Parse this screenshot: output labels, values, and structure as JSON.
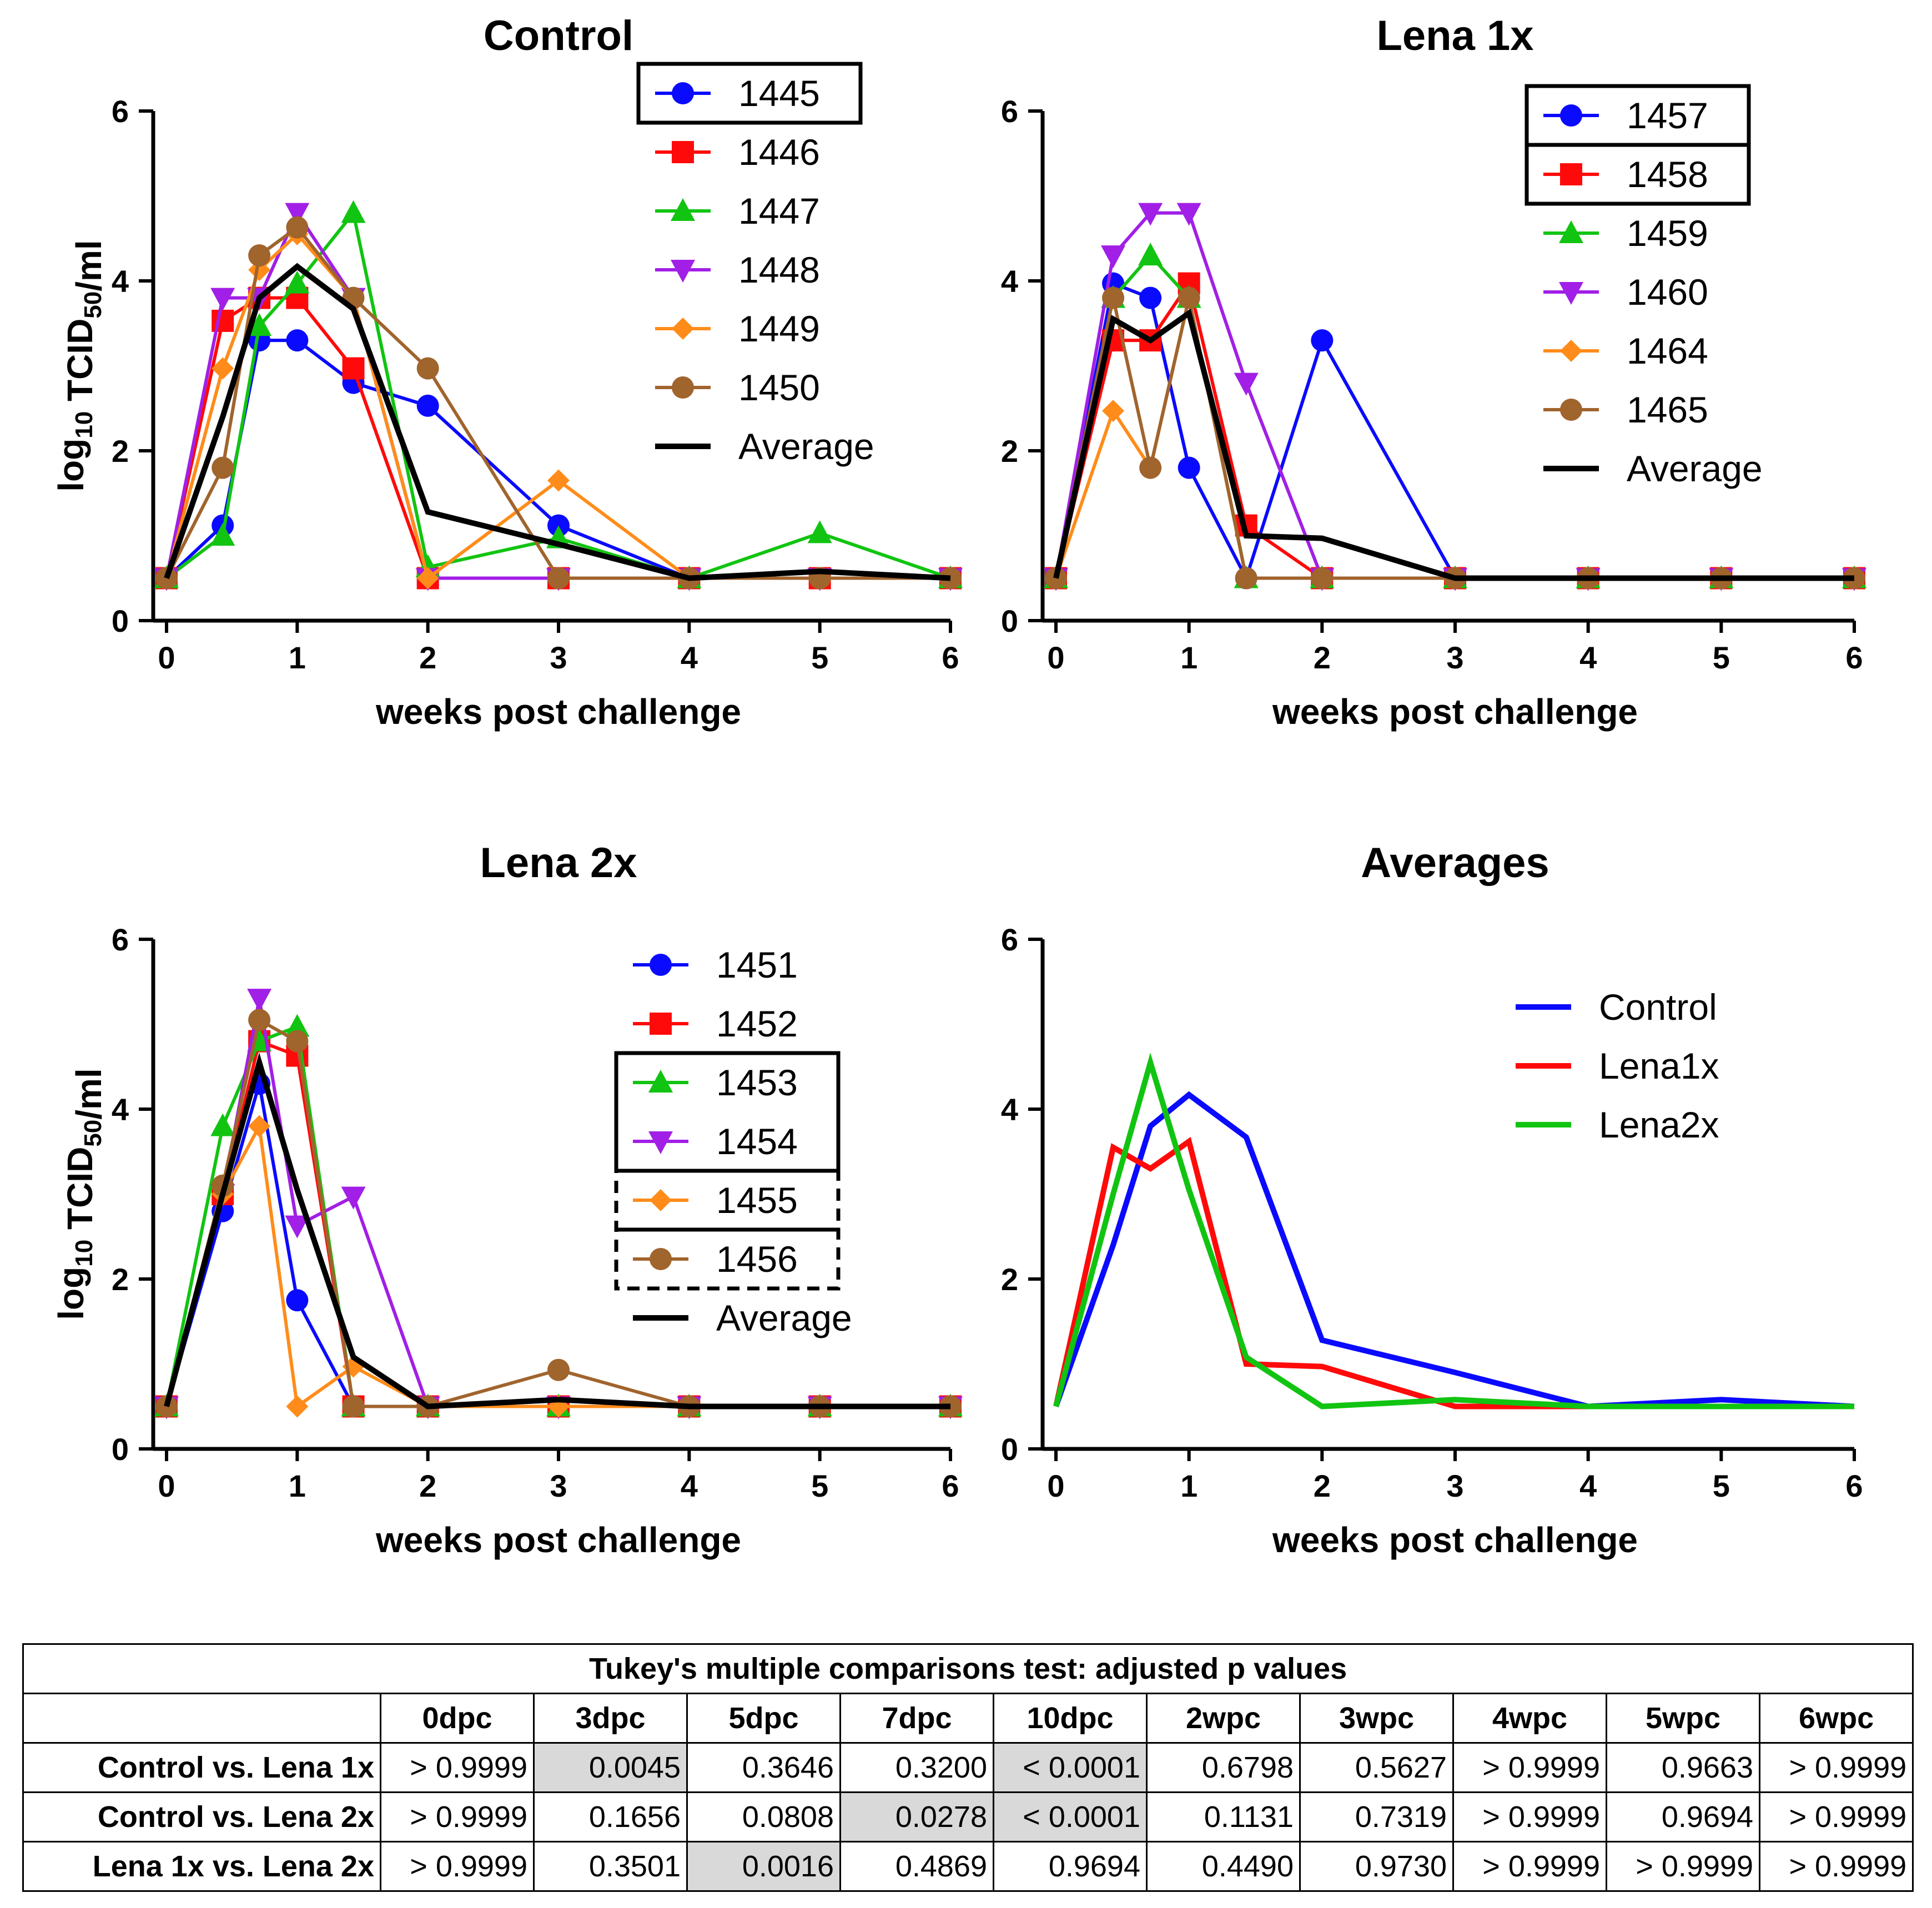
{
  "colors": {
    "blue": "#0a0aff",
    "red": "#ff0a0a",
    "green": "#11c411",
    "purple": "#a11fe6",
    "orange": "#ff8c1a",
    "brown": "#a0642d",
    "black": "#000000"
  },
  "chart_data": [
    {
      "type": "line",
      "title": "Control",
      "xlabel": "weeks post challenge",
      "ylabel_main": "log",
      "ylabel_sub": "10",
      "ylabel_mid": " TCID",
      "ylabel_sub2": "50",
      "ylabel_end": "/ml",
      "xlim": [
        0,
        6
      ],
      "ylim": [
        0,
        6
      ],
      "xticks": [
        "0",
        "1",
        "2",
        "3",
        "4",
        "5",
        "6"
      ],
      "yticks": [
        "0",
        "2",
        "4",
        "6"
      ],
      "series": [
        {
          "name": "1445",
          "color": "#0a0aff",
          "marker": "circle",
          "x": [
            0,
            0.43,
            0.71,
            1,
            1.43,
            2,
            3,
            4,
            5,
            6
          ],
          "y": [
            0.5,
            1.12,
            3.3,
            3.3,
            2.8,
            2.53,
            1.12,
            0.5,
            0.5,
            0.5
          ]
        },
        {
          "name": "1446",
          "color": "#ff0a0a",
          "marker": "square",
          "x": [
            0,
            0.43,
            0.71,
            1,
            1.43,
            2,
            3,
            4,
            5,
            6
          ],
          "y": [
            0.5,
            3.53,
            3.8,
            3.8,
            2.97,
            0.5,
            0.5,
            0.5,
            0.5,
            0.5
          ]
        },
        {
          "name": "1447",
          "color": "#11c411",
          "marker": "triangle-up",
          "x": [
            0,
            0.43,
            0.71,
            1,
            1.43,
            2,
            3,
            4,
            5,
            6
          ],
          "y": [
            0.5,
            1.0,
            3.47,
            3.97,
            4.8,
            0.63,
            0.97,
            0.5,
            1.03,
            0.5
          ]
        },
        {
          "name": "1448",
          "color": "#a11fe6",
          "marker": "triangle-down",
          "x": [
            0,
            0.43,
            0.71,
            1,
            1.43,
            2,
            3,
            4,
            5,
            6
          ],
          "y": [
            0.5,
            3.8,
            3.8,
            4.8,
            3.8,
            0.5,
            0.5,
            0.5,
            0.5,
            0.5
          ]
        },
        {
          "name": "1449",
          "color": "#ff8c1a",
          "marker": "diamond",
          "x": [
            0,
            0.43,
            0.71,
            1,
            1.43,
            2,
            3,
            4,
            5,
            6
          ],
          "y": [
            0.5,
            2.97,
            4.13,
            4.55,
            3.8,
            0.5,
            1.65,
            0.5,
            0.5,
            0.5
          ]
        },
        {
          "name": "1450",
          "color": "#a0642d",
          "marker": "circle",
          "x": [
            0,
            0.43,
            0.71,
            1,
            1.43,
            2,
            3,
            4,
            5,
            6
          ],
          "y": [
            0.5,
            1.8,
            4.3,
            4.63,
            3.8,
            2.97,
            0.5,
            0.5,
            0.5,
            0.5
          ]
        },
        {
          "name": "Average",
          "color": "#000000",
          "marker": "none",
          "x": [
            0,
            0.43,
            0.71,
            1,
            1.43,
            2,
            3,
            4,
            5,
            6
          ],
          "y": [
            0.5,
            2.4,
            3.8,
            4.17,
            3.67,
            1.28,
            0.9,
            0.5,
            0.58,
            0.5
          ]
        }
      ],
      "legend_boxes": [
        {
          "from": 0,
          "to": 0,
          "style": "solid"
        }
      ]
    },
    {
      "type": "line",
      "title": "Lena 1x",
      "xlabel": "weeks post challenge",
      "xlim": [
        0,
        6
      ],
      "ylim": [
        0,
        6
      ],
      "xticks": [
        "0",
        "1",
        "2",
        "3",
        "4",
        "5",
        "6"
      ],
      "yticks": [
        "0",
        "2",
        "4",
        "6"
      ],
      "series": [
        {
          "name": "1457",
          "color": "#0a0aff",
          "marker": "circle",
          "x": [
            0,
            0.43,
            0.71,
            1,
            1.43,
            2,
            3,
            4,
            5,
            6
          ],
          "y": [
            0.5,
            3.97,
            3.8,
            1.8,
            0.5,
            3.3,
            0.5,
            0.5,
            0.5,
            0.5
          ]
        },
        {
          "name": "1458",
          "color": "#ff0a0a",
          "marker": "square",
          "x": [
            0,
            0.43,
            0.71,
            1,
            1.43,
            2,
            3,
            4,
            5,
            6
          ],
          "y": [
            0.5,
            3.3,
            3.3,
            3.97,
            1.12,
            0.5,
            0.5,
            0.5,
            0.5,
            0.5
          ]
        },
        {
          "name": "1459",
          "color": "#11c411",
          "marker": "triangle-up",
          "x": [
            0,
            0.43,
            0.71,
            1,
            1.43,
            2,
            3,
            4,
            5,
            6
          ],
          "y": [
            0.5,
            3.8,
            4.3,
            3.8,
            0.5,
            0.5,
            0.5,
            0.5,
            0.5,
            0.5
          ]
        },
        {
          "name": "1460",
          "color": "#a11fe6",
          "marker": "triangle-down",
          "x": [
            0,
            0.43,
            0.71,
            1,
            1.43,
            2,
            3,
            4,
            5,
            6
          ],
          "y": [
            0.5,
            4.3,
            4.8,
            4.8,
            2.8,
            0.5,
            0.5,
            0.5,
            0.5,
            0.5
          ]
        },
        {
          "name": "1464",
          "color": "#ff8c1a",
          "marker": "diamond",
          "x": [
            0,
            0.43,
            0.71,
            1,
            1.43,
            2,
            3,
            4,
            5,
            6
          ],
          "y": [
            0.5,
            2.47,
            1.8,
            3.8,
            0.5,
            0.5,
            0.5,
            0.5,
            0.5,
            0.5
          ]
        },
        {
          "name": "1465",
          "color": "#a0642d",
          "marker": "circle",
          "x": [
            0,
            0.43,
            0.71,
            1,
            1.43,
            2,
            3,
            4,
            5,
            6
          ],
          "y": [
            0.5,
            3.8,
            1.8,
            3.8,
            0.5,
            0.5,
            0.5,
            0.5,
            0.5,
            0.5
          ]
        },
        {
          "name": "Average",
          "color": "#000000",
          "marker": "none",
          "x": [
            0,
            0.43,
            0.71,
            1,
            1.43,
            2,
            3,
            4,
            5,
            6
          ],
          "y": [
            0.5,
            3.55,
            3.3,
            3.62,
            1.0,
            0.97,
            0.5,
            0.5,
            0.5,
            0.5
          ]
        }
      ],
      "legend_boxes": [
        {
          "from": 0,
          "to": 0,
          "style": "solid"
        },
        {
          "from": 1,
          "to": 1,
          "style": "solid"
        }
      ]
    },
    {
      "type": "line",
      "title": "Lena 2x",
      "xlabel": "weeks post challenge",
      "ylabel_main": "log",
      "ylabel_sub": "10",
      "ylabel_mid": " TCID",
      "ylabel_sub2": "50",
      "ylabel_end": "/ml",
      "xlim": [
        0,
        6
      ],
      "ylim": [
        0,
        6
      ],
      "xticks": [
        "0",
        "1",
        "2",
        "3",
        "4",
        "5",
        "6"
      ],
      "yticks": [
        "0",
        "2",
        "4",
        "6"
      ],
      "series": [
        {
          "name": "1451",
          "color": "#0a0aff",
          "marker": "circle",
          "x": [
            0,
            0.43,
            0.71,
            1,
            1.43,
            2,
            3,
            4,
            5,
            6
          ],
          "y": [
            0.5,
            2.8,
            4.3,
            1.75,
            0.5,
            0.5,
            0.5,
            0.5,
            0.5,
            0.5
          ]
        },
        {
          "name": "1452",
          "color": "#ff0a0a",
          "marker": "square",
          "x": [
            0,
            0.43,
            0.71,
            1,
            1.43,
            2,
            3,
            4,
            5,
            6
          ],
          "y": [
            0.5,
            3.0,
            4.8,
            4.63,
            0.5,
            0.5,
            0.5,
            0.5,
            0.5,
            0.5
          ]
        },
        {
          "name": "1453",
          "color": "#11c411",
          "marker": "triangle-up",
          "x": [
            0,
            0.43,
            0.71,
            1,
            1.43,
            2,
            3,
            4,
            5,
            6
          ],
          "y": [
            0.5,
            3.8,
            4.8,
            4.97,
            0.5,
            0.5,
            0.5,
            0.5,
            0.5,
            0.5
          ]
        },
        {
          "name": "1454",
          "color": "#a11fe6",
          "marker": "triangle-down",
          "x": [
            0,
            0.43,
            0.71,
            1,
            1.43,
            2,
            3,
            4,
            5,
            6
          ],
          "y": [
            0.5,
            3.0,
            5.3,
            2.63,
            2.97,
            0.5,
            0.5,
            0.5,
            0.5,
            0.5
          ]
        },
        {
          "name": "1455",
          "color": "#ff8c1a",
          "marker": "diamond",
          "x": [
            0,
            0.43,
            0.71,
            1,
            1.43,
            2,
            3,
            4,
            5,
            6
          ],
          "y": [
            0.5,
            3.0,
            3.8,
            0.5,
            0.97,
            0.5,
            0.5,
            0.5,
            0.5,
            0.5
          ]
        },
        {
          "name": "1456",
          "color": "#a0642d",
          "marker": "circle",
          "x": [
            0,
            0.43,
            0.71,
            1,
            1.43,
            2,
            3,
            4,
            5,
            6
          ],
          "y": [
            0.5,
            3.1,
            5.05,
            4.8,
            0.5,
            0.5,
            0.93,
            0.5,
            0.5,
            0.5
          ]
        },
        {
          "name": "Average",
          "color": "#000000",
          "marker": "none",
          "x": [
            0,
            0.43,
            0.71,
            1,
            1.43,
            2,
            3,
            4,
            5,
            6
          ],
          "y": [
            0.5,
            3.0,
            4.55,
            3.05,
            1.08,
            0.5,
            0.58,
            0.5,
            0.5,
            0.5
          ]
        }
      ],
      "legend_boxes": [
        {
          "from": 2,
          "to": 3,
          "style": "solid"
        },
        {
          "from": 4,
          "to": 4,
          "style": "dashed"
        },
        {
          "from": 5,
          "to": 5,
          "style": "dashed"
        }
      ]
    },
    {
      "type": "line",
      "title": "Averages",
      "xlabel": "weeks post challenge",
      "xlim": [
        0,
        6
      ],
      "ylim": [
        0,
        6
      ],
      "xticks": [
        "0",
        "1",
        "2",
        "3",
        "4",
        "5",
        "6"
      ],
      "yticks": [
        "0",
        "2",
        "4",
        "6"
      ],
      "series": [
        {
          "name": "Control",
          "color": "#0a0aff",
          "marker": "none",
          "x": [
            0,
            0.43,
            0.71,
            1,
            1.43,
            2,
            3,
            4,
            5,
            6
          ],
          "y": [
            0.5,
            2.4,
            3.8,
            4.17,
            3.67,
            1.28,
            0.9,
            0.5,
            0.58,
            0.5
          ]
        },
        {
          "name": "Lena1x",
          "color": "#ff0a0a",
          "marker": "none",
          "x": [
            0,
            0.43,
            0.71,
            1,
            1.43,
            2,
            3,
            4,
            5,
            6
          ],
          "y": [
            0.5,
            3.55,
            3.3,
            3.62,
            1.0,
            0.97,
            0.5,
            0.5,
            0.5,
            0.5
          ]
        },
        {
          "name": "Lena2x",
          "color": "#11c411",
          "marker": "none",
          "x": [
            0,
            0.43,
            0.71,
            1,
            1.43,
            2,
            3,
            4,
            5,
            6
          ],
          "y": [
            0.5,
            3.0,
            4.55,
            3.05,
            1.08,
            0.5,
            0.58,
            0.5,
            0.5,
            0.5
          ]
        }
      ],
      "legend_boxes": []
    }
  ],
  "table": {
    "title": "Tukey's multiple comparisons test: adjusted p values",
    "columns": [
      "0dpc",
      "3dpc",
      "5dpc",
      "7dpc",
      "10dpc",
      "2wpc",
      "3wpc",
      "4wpc",
      "5wpc",
      "6wpc"
    ],
    "rows": [
      {
        "label": "Control vs. Lena 1x",
        "values": [
          "> 0.9999",
          "0.0045",
          "0.3646",
          "0.3200",
          "< 0.0001",
          "0.6798",
          "0.5627",
          "> 0.9999",
          "0.9663",
          "> 0.9999"
        ],
        "highlight": [
          false,
          true,
          false,
          false,
          true,
          false,
          false,
          false,
          false,
          false
        ]
      },
      {
        "label": "Control vs. Lena 2x",
        "values": [
          "> 0.9999",
          "0.1656",
          "0.0808",
          "0.0278",
          "< 0.0001",
          "0.1131",
          "0.7319",
          "> 0.9999",
          "0.9694",
          "> 0.9999"
        ],
        "highlight": [
          false,
          false,
          false,
          true,
          true,
          false,
          false,
          false,
          false,
          false
        ]
      },
      {
        "label": "Lena 1x vs. Lena 2x",
        "values": [
          "> 0.9999",
          "0.3501",
          "0.0016",
          "0.4869",
          "0.9694",
          "0.4490",
          "0.9730",
          "> 0.9999",
          "> 0.9999",
          "> 0.9999"
        ],
        "highlight": [
          false,
          false,
          true,
          false,
          false,
          false,
          false,
          false,
          false,
          false
        ]
      }
    ]
  }
}
